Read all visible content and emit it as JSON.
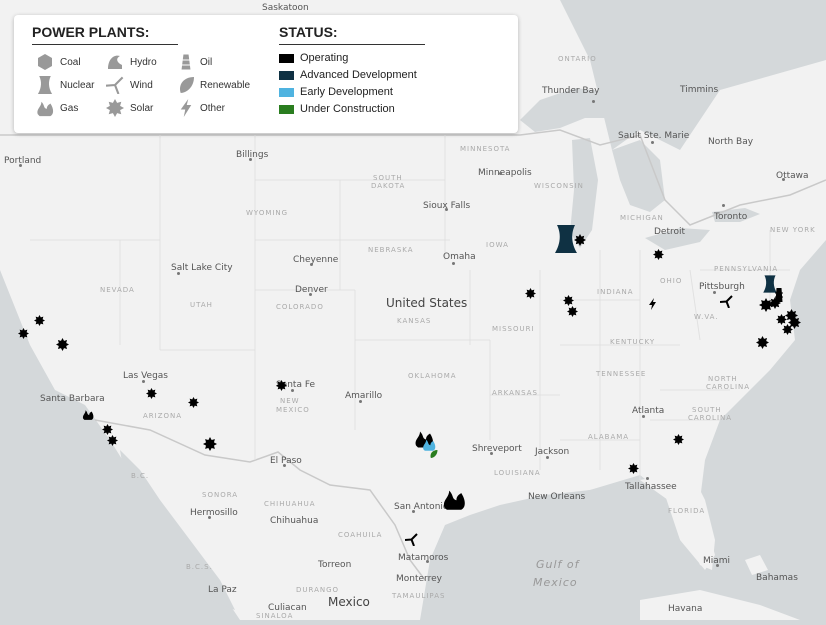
{
  "legend": {
    "plants_title": "POWER PLANTS:",
    "status_title": "STATUS:",
    "plant_types": [
      {
        "label": "Coal",
        "icon": "coal-icon"
      },
      {
        "label": "Hydro",
        "icon": "hydro-icon"
      },
      {
        "label": "Oil",
        "icon": "oil-icon"
      },
      {
        "label": "Nuclear",
        "icon": "nuclear-icon"
      },
      {
        "label": "Wind",
        "icon": "wind-icon"
      },
      {
        "label": "Renewable",
        "icon": "renewable-icon"
      },
      {
        "label": "Gas",
        "icon": "gas-icon"
      },
      {
        "label": "Solar",
        "icon": "solar-icon"
      },
      {
        "label": "Other",
        "icon": "other-icon"
      }
    ],
    "statuses": [
      {
        "label": "Operating",
        "color": "#000000"
      },
      {
        "label": "Advanced Development",
        "color": "#0f3143"
      },
      {
        "label": "Early Development",
        "color": "#4fb3e0"
      },
      {
        "label": "Under Construction",
        "color": "#2a7d1f"
      }
    ]
  },
  "map": {
    "countries": [
      "United States",
      "Mexico"
    ],
    "waters": [
      "Gulf of",
      "Mexico"
    ],
    "cities": [
      "Saskatoon",
      "Thunder Bay",
      "Timmins",
      "Sault Ste. Marie",
      "North Bay",
      "Ottawa",
      "Toronto",
      "Minneapolis",
      "Billings",
      "Portland",
      "Sioux Falls",
      "Detroit",
      "Cheyenne",
      "Omaha",
      "Salt Lake City",
      "Pittsburgh",
      "Denver",
      "Las Vegas",
      "Santa Fe",
      "Amarillo",
      "Santa Barbara",
      "Atlanta",
      "Shreveport",
      "Jackson",
      "El Paso",
      "Tallahassee",
      "New Orleans",
      "San Antonio",
      "Hermosillo",
      "Chihuahua",
      "Miami",
      "Monterrey",
      "Torreon",
      "Matamoros",
      "Bahamas",
      "La Paz",
      "Havana",
      "Culiacan"
    ],
    "regions": [
      "MINNESOTA",
      "ONTARIO",
      "SOUTH",
      "DAKOTA",
      "WISCONSIN",
      "MICHIGAN",
      "WYOMING",
      "NEBRASKA",
      "IOWA",
      "NEW YORK",
      "PENNSYLVANIA",
      "OHIO",
      "NEVADA",
      "UTAH",
      "COLORADO",
      "KANSAS",
      "MISSOURI",
      "INDIANA",
      "W.VA.",
      "KENTUCKY",
      "ARIZONA",
      "NEW",
      "MEXICO",
      "OKLAHOMA",
      "ARKANSAS",
      "TENNESSEE",
      "NORTH",
      "CAROLINA",
      "SOUTH",
      "CAROLINA",
      "ALABAMA",
      "LOUISIANA",
      "FLORIDA",
      "SONORA",
      "CHIHUAHUA",
      "COAHUILA",
      "B.C.",
      "B.C.S.",
      "DURANGO",
      "TAMAULIPAS",
      "SINALOA"
    ],
    "plants": [
      {
        "type": "nuclear",
        "status": "Advanced Development"
      },
      {
        "type": "solar",
        "status": "Operating"
      },
      {
        "type": "solar",
        "status": "Operating"
      },
      {
        "type": "solar",
        "status": "Operating"
      },
      {
        "type": "solar",
        "status": "Operating"
      },
      {
        "type": "solar",
        "status": "Operating"
      },
      {
        "type": "other",
        "status": "Operating"
      },
      {
        "type": "wind",
        "status": "Operating"
      },
      {
        "type": "nuclear",
        "status": "Advanced Development"
      },
      {
        "type": "oil",
        "status": "Operating"
      },
      {
        "type": "solar",
        "status": "Operating"
      },
      {
        "type": "solar",
        "status": "Operating"
      },
      {
        "type": "solar",
        "status": "Operating"
      },
      {
        "type": "solar",
        "status": "Operating"
      },
      {
        "type": "solar",
        "status": "Operating"
      },
      {
        "type": "solar",
        "status": "Operating"
      },
      {
        "type": "solar",
        "status": "Operating"
      },
      {
        "type": "solar",
        "status": "Operating"
      },
      {
        "type": "solar",
        "status": "Operating"
      },
      {
        "type": "solar",
        "status": "Operating"
      },
      {
        "type": "solar",
        "status": "Operating"
      },
      {
        "type": "gas",
        "status": "Operating"
      },
      {
        "type": "solar",
        "status": "Operating"
      },
      {
        "type": "solar",
        "status": "Operating"
      },
      {
        "type": "solar",
        "status": "Operating"
      },
      {
        "type": "solar",
        "status": "Operating"
      },
      {
        "type": "gas",
        "status": "Operating"
      },
      {
        "type": "gas",
        "status": "Early Development"
      },
      {
        "type": "renewable",
        "status": "Under Construction"
      },
      {
        "type": "gas",
        "status": "Operating"
      },
      {
        "type": "wind",
        "status": "Operating"
      },
      {
        "type": "solar",
        "status": "Operating"
      },
      {
        "type": "solar",
        "status": "Operating"
      }
    ]
  }
}
